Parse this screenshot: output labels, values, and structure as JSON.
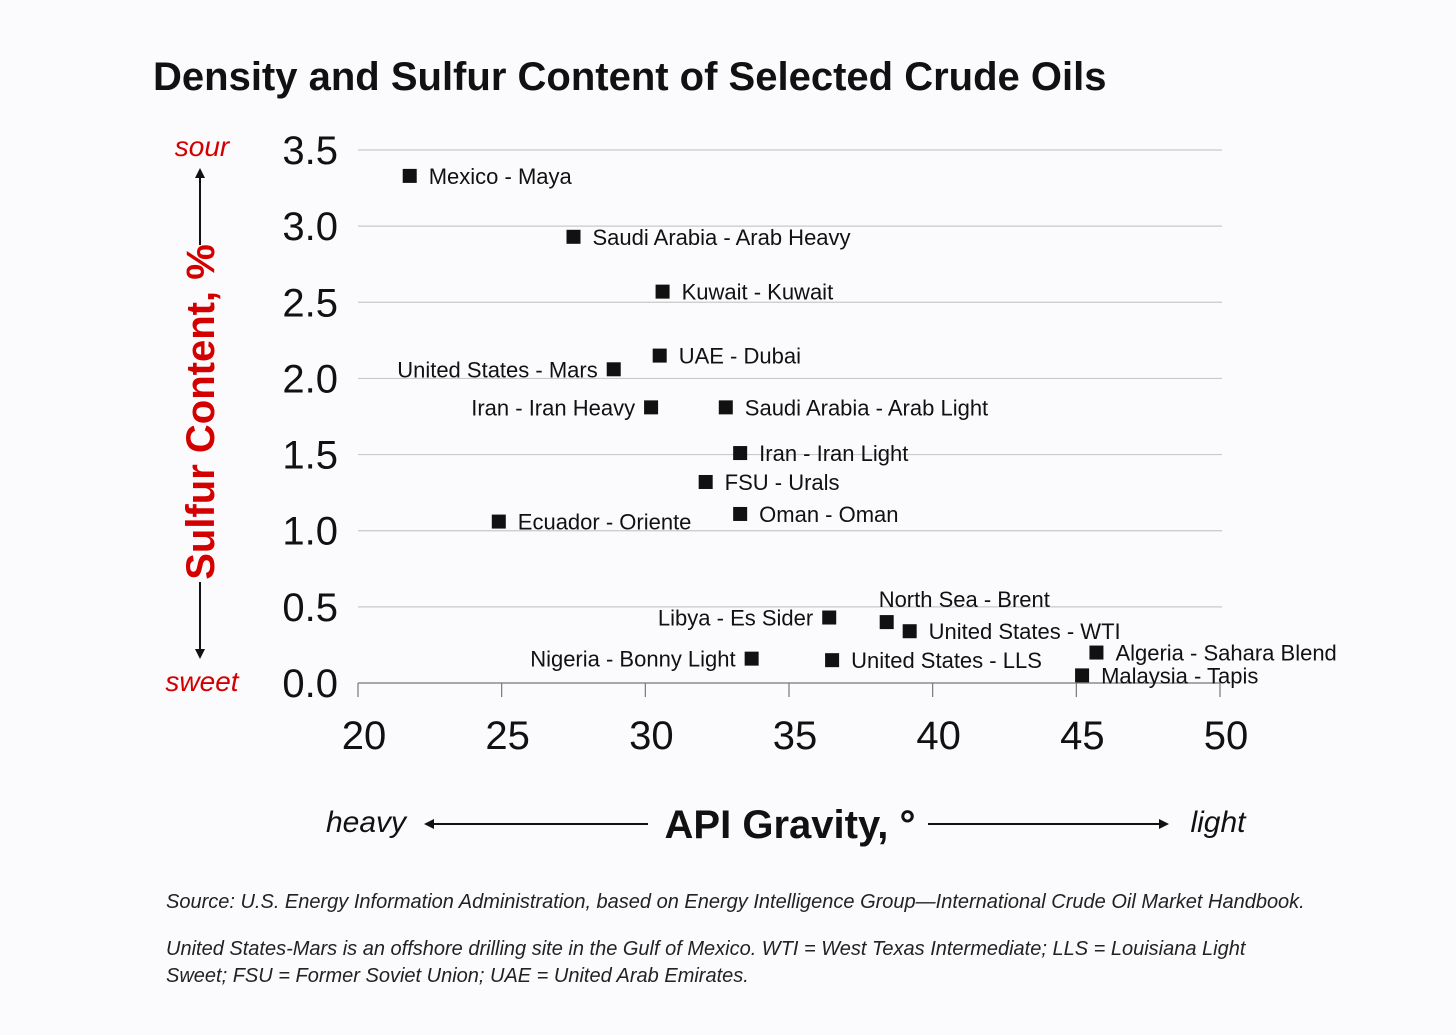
{
  "chart_data": {
    "type": "scatter",
    "title": "Density and Sulfur Content of Selected Crude Oils",
    "xlabel": "API Gravity, °",
    "ylabel": "Sulfur Content, %",
    "xlim": [
      20,
      50
    ],
    "ylim": [
      0,
      3.5
    ],
    "xticks": [
      "20",
      "25",
      "30",
      "35",
      "40",
      "45",
      "50"
    ],
    "yticks": [
      "0.0",
      "0.5",
      "1.0",
      "1.5",
      "2.0",
      "2.5",
      "3.0",
      "3.5"
    ],
    "grid": true,
    "x_end_labels": {
      "low": "heavy",
      "high": "light"
    },
    "y_end_labels": {
      "low": "sweet",
      "high": "sour"
    },
    "points": [
      {
        "label": "Mexico - Maya",
        "x": 21.8,
        "y": 3.33,
        "label_side": "right"
      },
      {
        "label": "Saudi Arabia - Arab Heavy",
        "x": 27.5,
        "y": 2.93,
        "label_side": "right"
      },
      {
        "label": "Kuwait - Kuwait",
        "x": 30.6,
        "y": 2.57,
        "label_side": "right"
      },
      {
        "label": "UAE - Dubai",
        "x": 30.5,
        "y": 2.15,
        "label_side": "right"
      },
      {
        "label": "United States - Mars",
        "x": 28.9,
        "y": 2.06,
        "label_side": "left"
      },
      {
        "label": "Iran - Iran Heavy",
        "x": 30.2,
        "y": 1.81,
        "label_side": "left"
      },
      {
        "label": "Saudi Arabia - Arab Light",
        "x": 32.8,
        "y": 1.81,
        "label_side": "right"
      },
      {
        "label": "Iran - Iran Light",
        "x": 33.3,
        "y": 1.51,
        "label_side": "right"
      },
      {
        "label": "FSU - Urals",
        "x": 32.1,
        "y": 1.32,
        "label_side": "right"
      },
      {
        "label": "Oman - Oman",
        "x": 33.3,
        "y": 1.11,
        "label_side": "right"
      },
      {
        "label": "Ecuador - Oriente",
        "x": 24.9,
        "y": 1.06,
        "label_side": "right"
      },
      {
        "label": "Libya - Es Sider",
        "x": 36.4,
        "y": 0.43,
        "label_side": "left"
      },
      {
        "label": "North Sea - Brent",
        "x": 38.4,
        "y": 0.4,
        "label_side": "above"
      },
      {
        "label": "United States - WTI",
        "x": 39.2,
        "y": 0.34,
        "label_side": "right"
      },
      {
        "label": "Nigeria - Bonny Light",
        "x": 33.7,
        "y": 0.16,
        "label_side": "left"
      },
      {
        "label": "United States - LLS",
        "x": 36.5,
        "y": 0.15,
        "label_side": "right"
      },
      {
        "label": "Algeria - Sahara Blend",
        "x": 45.7,
        "y": 0.2,
        "label_side": "right"
      },
      {
        "label": "Malaysia - Tapis",
        "x": 45.2,
        "y": 0.05,
        "label_side": "right"
      }
    ]
  },
  "notes": {
    "source": "Source: U.S. Energy Information Administration, based on Energy Intelligence Group—International Crude Oil Market Handbook.",
    "footnote_line1": "United States-Mars is an offshore drilling site in the Gulf of Mexico. WTI = West Texas Intermediate; LLS = Louisiana Light",
    "footnote_line2": "Sweet; FSU = Former Soviet Union; UAE = United Arab Emirates."
  },
  "colors": {
    "accent_red": "#d40000",
    "ink": "#111111",
    "grid": "#c9c9cc"
  }
}
